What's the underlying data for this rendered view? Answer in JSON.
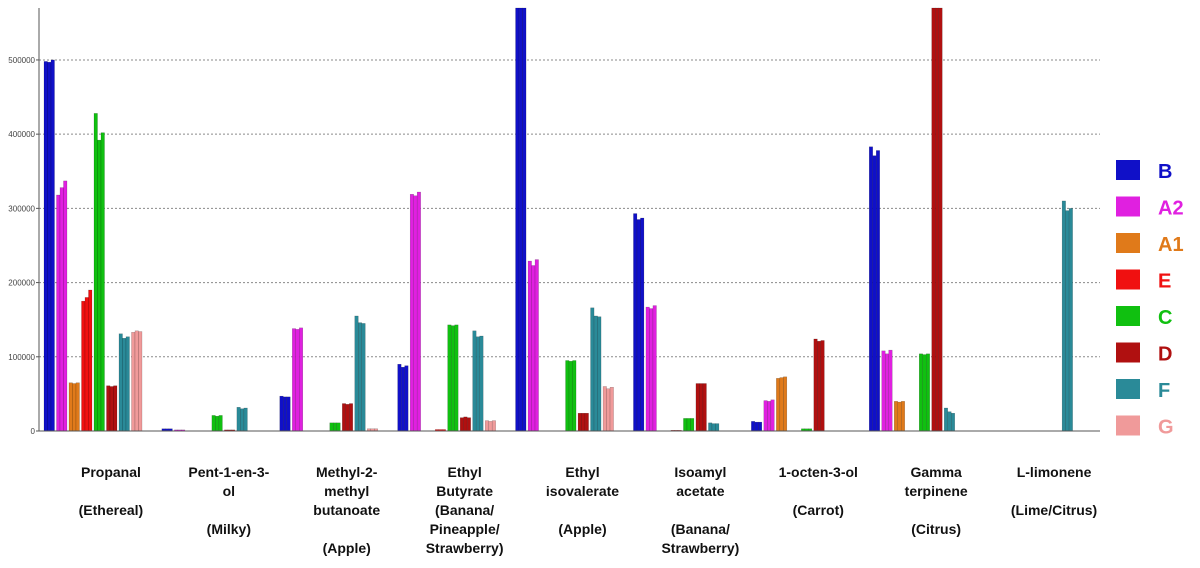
{
  "chart_data": {
    "type": "bar",
    "ylim": [
      0,
      570000
    ],
    "yticks": [
      0,
      100000,
      200000,
      300000,
      400000,
      500000
    ],
    "ytick_labels": [
      "0",
      "100000",
      "200000",
      "300000",
      "400000",
      "500000"
    ],
    "grid": true,
    "legend_position": "right",
    "categories": [
      {
        "lines": [
          "Propanal",
          "",
          "(Ethereal)"
        ]
      },
      {
        "lines": [
          "Pent-1-en-3-",
          "ol",
          "",
          "(Milky)"
        ]
      },
      {
        "lines": [
          "Methyl-2-",
          "methyl",
          "butanoate",
          "",
          "(Apple)"
        ]
      },
      {
        "lines": [
          "Ethyl",
          "Butyrate",
          "(Banana/",
          "Pineapple/",
          "Strawberry)"
        ]
      },
      {
        "lines": [
          "Ethyl",
          "isovalerate",
          "",
          "(Apple)"
        ]
      },
      {
        "lines": [
          "Isoamyl",
          "acetate",
          "",
          "(Banana/",
          "Strawberry)"
        ]
      },
      {
        "lines": [
          "1-octen-3-ol",
          "",
          "(Carrot)"
        ]
      },
      {
        "lines": [
          "Gamma",
          "terpinene",
          "",
          "(Citrus)"
        ]
      },
      {
        "lines": [
          "L-limonene",
          "",
          "(Lime/Citrus)"
        ]
      }
    ],
    "series": [
      {
        "name": "B",
        "color": "#1010c8",
        "values": [
          [
            498000,
            497000,
            500000
          ],
          [
            3000,
            3000,
            3000
          ],
          [
            47000,
            46000,
            46000
          ],
          [
            90000,
            86000,
            88000
          ],
          [
            570000,
            570000,
            570000
          ],
          [
            293000,
            285000,
            287000
          ],
          [
            13000,
            12000,
            12000
          ],
          [
            383000,
            371000,
            378000
          ],
          [
            0,
            0,
            0
          ]
        ]
      },
      {
        "name": "A2",
        "color": "#e020e0",
        "values": [
          [
            318000,
            328000,
            337000
          ],
          [
            1500,
            1500,
            1500
          ],
          [
            138000,
            137000,
            139000
          ],
          [
            319000,
            317000,
            322000
          ],
          [
            229000,
            223000,
            231000
          ],
          [
            167000,
            165000,
            169000
          ],
          [
            41000,
            40000,
            42000
          ],
          [
            108000,
            104000,
            109000
          ],
          [
            0,
            0,
            0
          ]
        ]
      },
      {
        "name": "A1",
        "color": "#e07a1a",
        "values": [
          [
            65000,
            64000,
            65000
          ],
          [
            0,
            0,
            0
          ],
          [
            0,
            0,
            0
          ],
          [
            0,
            0,
            0
          ],
          [
            0,
            0,
            0
          ],
          [
            0,
            0,
            0
          ],
          [
            71000,
            72000,
            73000
          ],
          [
            40000,
            39000,
            40000
          ],
          [
            0,
            0,
            0
          ]
        ]
      },
      {
        "name": "E",
        "color": "#f01010",
        "values": [
          [
            175000,
            180000,
            190000
          ],
          [
            0,
            0,
            0
          ],
          [
            0,
            0,
            0
          ],
          [
            2000,
            2000,
            2000
          ],
          [
            0,
            0,
            0
          ],
          [
            1000,
            1000,
            1000
          ],
          [
            0,
            0,
            0
          ],
          [
            0,
            0,
            0
          ],
          [
            0,
            0,
            0
          ]
        ]
      },
      {
        "name": "C",
        "color": "#10c010",
        "values": [
          [
            428000,
            392000,
            402000
          ],
          [
            21000,
            20000,
            21000
          ],
          [
            11000,
            11000,
            11000
          ],
          [
            143000,
            142000,
            143000
          ],
          [
            95000,
            94000,
            95000
          ],
          [
            17000,
            17000,
            17000
          ],
          [
            3000,
            3000,
            3000
          ],
          [
            104000,
            103000,
            104000
          ],
          [
            0,
            0,
            0
          ]
        ]
      },
      {
        "name": "D",
        "color": "#b01010",
        "values": [
          [
            61000,
            60000,
            61000
          ],
          [
            1500,
            1500,
            1500
          ],
          [
            37000,
            36000,
            37000
          ],
          [
            18000,
            19000,
            18000
          ],
          [
            24000,
            24000,
            24000
          ],
          [
            64000,
            64000,
            64000
          ],
          [
            124000,
            121000,
            122000
          ],
          [
            570000,
            570000,
            570000
          ],
          [
            0,
            0,
            0
          ]
        ]
      },
      {
        "name": "F",
        "color": "#2a8a98",
        "values": [
          [
            131000,
            125000,
            127000
          ],
          [
            32000,
            30000,
            31000
          ],
          [
            155000,
            146000,
            145000
          ],
          [
            135000,
            127000,
            128000
          ],
          [
            166000,
            155000,
            154000
          ],
          [
            11000,
            10000,
            10000
          ],
          [
            0,
            0,
            0
          ],
          [
            31000,
            26000,
            24000
          ],
          [
            310000,
            297000,
            300000
          ]
        ]
      },
      {
        "name": "G",
        "color": "#f09a9a",
        "values": [
          [
            133000,
            135000,
            134000
          ],
          [
            0,
            0,
            0
          ],
          [
            3000,
            3000,
            3000
          ],
          [
            14000,
            13000,
            14000
          ],
          [
            60000,
            57000,
            59000
          ],
          [
            0,
            0,
            0
          ],
          [
            0,
            0,
            0
          ],
          [
            0,
            0,
            0
          ],
          [
            0,
            0,
            0
          ]
        ]
      }
    ]
  }
}
